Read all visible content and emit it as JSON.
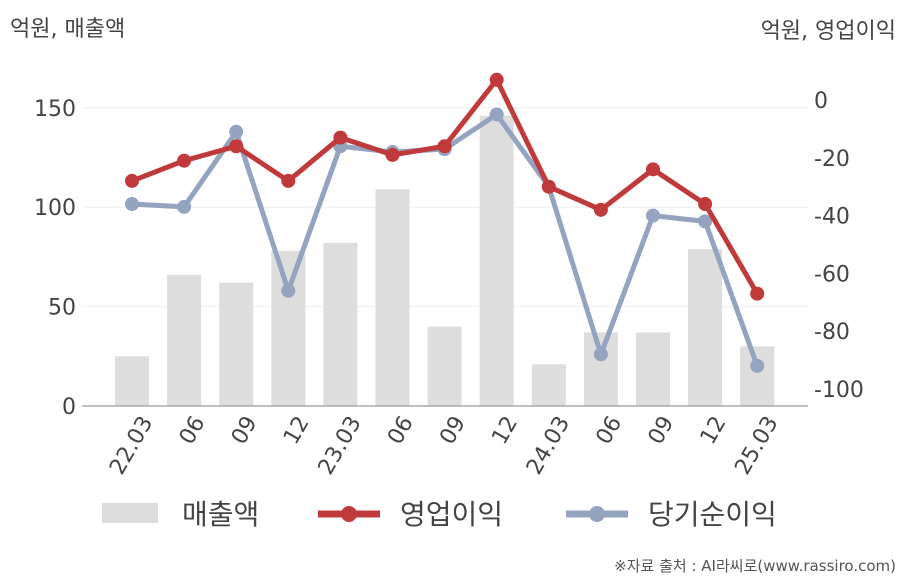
{
  "chart_data": {
    "type": "bar",
    "categories": [
      "22.03",
      "06",
      "09",
      "12",
      "23.03",
      "06",
      "09",
      "12",
      "24.03",
      "06",
      "09",
      "12",
      "25.03"
    ],
    "left_axis": {
      "title": "억원, 매출액",
      "ylim": [
        0,
        160
      ],
      "ticks": [
        0,
        50,
        100,
        150
      ]
    },
    "right_axis": {
      "title": "억원, 영업이익",
      "ylim": [
        -110,
        5
      ],
      "ticks": [
        0,
        -20,
        -40,
        -60,
        -80,
        -100
      ]
    },
    "series": [
      {
        "name": "매출액",
        "type": "bar",
        "axis": "left",
        "color": "#dddddd",
        "values": [
          25,
          66,
          62,
          78,
          82,
          109,
          40,
          146,
          21,
          37,
          37,
          79,
          30
        ]
      },
      {
        "name": "영업이익",
        "type": "line",
        "axis": "right",
        "color": "#c0393b",
        "values": [
          -28,
          -21,
          -16,
          -28,
          -13,
          -19,
          -16,
          7,
          -30,
          -38,
          -24,
          -36,
          -67
        ]
      },
      {
        "name": "당기순이익",
        "type": "line",
        "axis": "right",
        "color": "#94a3bf",
        "values": [
          -36,
          -37,
          -11,
          -66,
          -16,
          -18,
          -17,
          -5,
          -30,
          -88,
          -40,
          -42,
          -92
        ]
      }
    ],
    "legend_position": "bottom",
    "grid": true
  },
  "source_text": "※자료 출처 : AI라씨로(www.rassiro.com)"
}
